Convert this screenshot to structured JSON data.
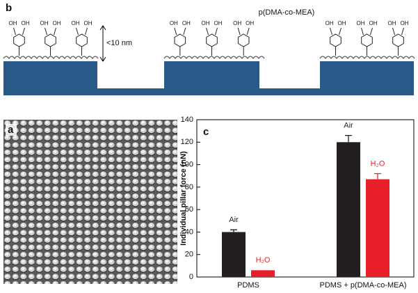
{
  "schematic": {
    "panel_label": "b",
    "polymer_label": "p(DMA-co-MEA)",
    "height_label": "<10 nm",
    "hydroxyl_label": "OH"
  },
  "image_panel": {
    "panel_label": "a"
  },
  "chart_data": {
    "type": "bar",
    "panel_label": "c",
    "y_label": "Individual pillar force (nN)",
    "categories": [
      "PDMS",
      "PDMS + p(DMA-co-MEA)"
    ],
    "series": [
      {
        "name": "Air",
        "color": "#231f20",
        "values": [
          40,
          120
        ],
        "errors": [
          2,
          6
        ]
      },
      {
        "name": "H₂O",
        "color": "#e8202a",
        "values": [
          6,
          87
        ],
        "errors": [
          null,
          5
        ]
      }
    ],
    "ylim": [
      0,
      140
    ],
    "yticks": [
      0,
      20,
      40,
      60,
      80,
      100,
      120,
      140
    ]
  }
}
